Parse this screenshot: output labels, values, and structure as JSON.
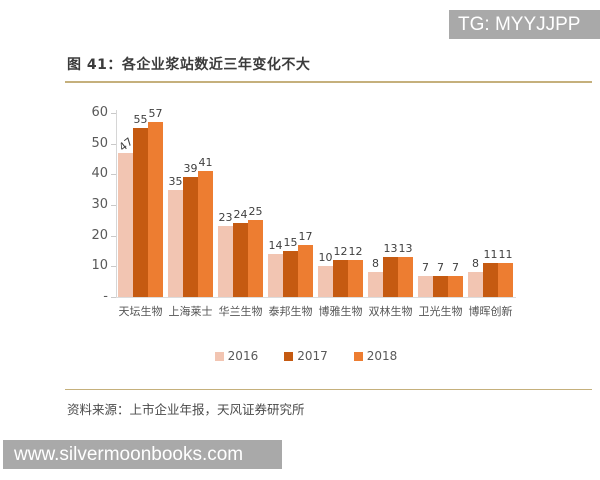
{
  "watermarks": {
    "top": "TG: MYYJJPP",
    "bottom": "www.silvermoonbooks.com"
  },
  "figure": {
    "title": "图 41：各企业浆站数近三年变化不大",
    "source": "资料来源：上市企业年报，天风证券研究所"
  },
  "chart_data": {
    "type": "bar",
    "title": "各企业浆站数近三年变化不大",
    "categories": [
      "天坛生物",
      "上海莱士",
      "华兰生物",
      "泰邦生物",
      "博雅生物",
      "双林生物",
      "卫光生物",
      "博晖创新"
    ],
    "series": [
      {
        "name": "2016",
        "color": "#f2c5b2",
        "values": [
          47,
          35,
          23,
          14,
          10,
          8,
          7,
          8
        ]
      },
      {
        "name": "2017",
        "color": "#c55a11",
        "values": [
          55,
          39,
          24,
          15,
          12,
          13,
          7,
          11
        ]
      },
      {
        "name": "2018",
        "color": "#ed7d31",
        "values": [
          57,
          41,
          25,
          17,
          12,
          13,
          7,
          11
        ]
      }
    ],
    "ylim": [
      0,
      60
    ],
    "ytick_values": [
      0,
      10,
      20,
      30,
      40,
      50,
      60
    ],
    "ytick_labels": [
      "-",
      "10",
      "20",
      "30",
      "40",
      "50",
      "60"
    ],
    "legend_position": "bottom",
    "grid": false,
    "data_labels": true
  },
  "colors": {
    "gold_rule": "#c5b07c",
    "banner_gray": "#a9a9a9",
    "axis_gray": "#d6d6d6",
    "label_gray": "#595959"
  }
}
